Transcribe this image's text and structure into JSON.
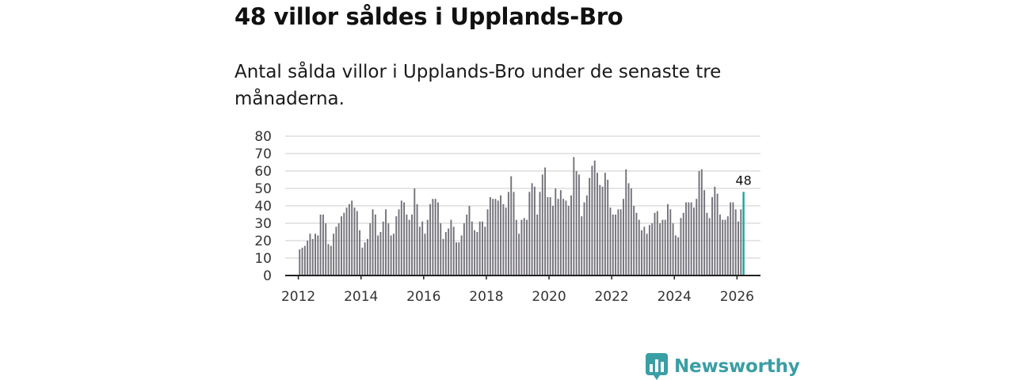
{
  "headline": "48 villor såldes i Upplands-Bro",
  "subtitle": "Antal sålda villor i Upplands-Bro under de senaste tre månaderna.",
  "brand": {
    "name": "Newsworthy",
    "accent_color": "#3a9ea5"
  },
  "colors": {
    "bar": "#74727a",
    "highlight": "#1aa3a0",
    "grid": "#dddddd",
    "axis": "#222222"
  },
  "chart_data": {
    "type": "bar",
    "title": "48 villor såldes i Upplands-Bro",
    "xlabel": "",
    "ylabel": "",
    "ylim": [
      0,
      80
    ],
    "yticks": [
      "0",
      "10",
      "20",
      "30",
      "40",
      "50",
      "60",
      "70",
      "80"
    ],
    "xticks": [
      {
        "label": "2012",
        "x": 2012
      },
      {
        "label": "2014",
        "x": 2014
      },
      {
        "label": "2016",
        "x": 2016
      },
      {
        "label": "2018",
        "x": 2018
      },
      {
        "label": "2020",
        "x": 2020
      },
      {
        "label": "2022",
        "x": 2022
      },
      {
        "label": "2024",
        "x": 2024
      },
      {
        "label": "2026",
        "x": 2026
      }
    ],
    "start_year": 2012,
    "start_month": 1,
    "step_months": 1,
    "values": [
      15,
      16,
      17,
      20,
      24,
      21,
      24,
      23,
      35,
      35,
      30,
      18,
      17,
      24,
      28,
      30,
      34,
      36,
      39,
      41,
      43,
      39,
      37,
      26,
      16,
      19,
      21,
      30,
      38,
      35,
      23,
      25,
      31,
      38,
      30,
      23,
      24,
      34,
      38,
      43,
      42,
      35,
      32,
      35,
      50,
      41,
      28,
      31,
      24,
      32,
      41,
      44,
      44,
      42,
      30,
      21,
      25,
      27,
      32,
      28,
      19,
      19,
      23,
      30,
      35,
      40,
      31,
      26,
      25,
      31,
      31,
      28,
      38,
      45,
      44,
      44,
      43,
      46,
      41,
      39,
      48,
      57,
      48,
      32,
      24,
      32,
      33,
      32,
      48,
      53,
      51,
      35,
      48,
      58,
      62,
      45,
      45,
      40,
      50,
      44,
      49,
      44,
      43,
      40,
      46,
      68,
      60,
      58,
      34,
      42,
      46,
      56,
      63,
      66,
      59,
      52,
      51,
      59,
      55,
      39,
      35,
      35,
      38,
      38,
      44,
      61,
      53,
      50,
      40,
      36,
      32,
      26,
      28,
      24,
      29,
      30,
      36,
      37,
      30,
      32,
      32,
      41,
      38,
      30,
      23,
      22,
      33,
      36,
      42,
      42,
      42,
      39,
      44,
      60,
      61,
      49,
      36,
      33,
      45,
      51,
      47,
      35,
      32,
      32,
      34,
      42,
      42,
      38,
      31,
      38,
      48
    ],
    "highlight": {
      "label": "48",
      "value": 48,
      "index": 170
    }
  }
}
